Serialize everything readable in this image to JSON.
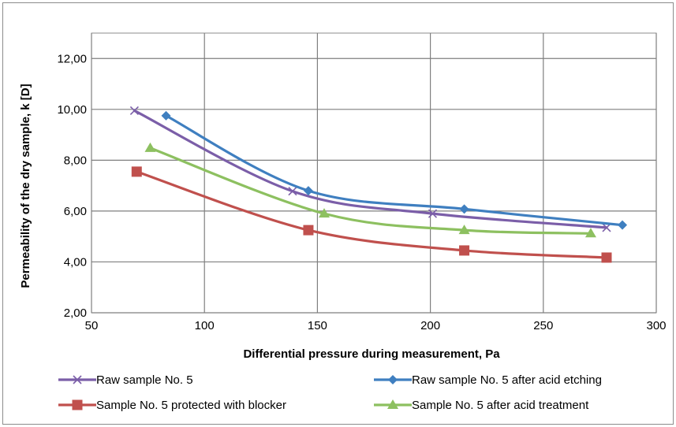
{
  "chart_data": {
    "type": "line",
    "xlabel": "Differential pressure during measurement, Pa",
    "ylabel": "Permeability of the dry sample, k [D]",
    "xlim": [
      50,
      300
    ],
    "ylim": [
      2,
      13
    ],
    "xticks": [
      50,
      100,
      150,
      200,
      250,
      300
    ],
    "xtick_labels": [
      "50",
      "100",
      "150",
      "200",
      "250",
      "300"
    ],
    "yticks": [
      2,
      4,
      6,
      8,
      10,
      12
    ],
    "ytick_labels": [
      "2,00",
      "4,00",
      "6,00",
      "8,00",
      "10,00",
      "12,00"
    ],
    "grid": true,
    "legend_position": "bottom",
    "series": [
      {
        "name": "Raw sample No. 5",
        "color": "#7b5ea8",
        "marker": "x",
        "x": [
          69,
          139,
          201,
          278
        ],
        "y": [
          9.95,
          6.78,
          5.9,
          5.35
        ]
      },
      {
        "name": "Raw sample No. 5 after acid etching",
        "color": "#3f7fc0",
        "marker": "diamond",
        "x": [
          83,
          146,
          215,
          285
        ],
        "y": [
          9.75,
          6.8,
          6.08,
          5.45
        ]
      },
      {
        "name": "Sample No. 5 protected with blocker",
        "color": "#c0504d",
        "marker": "square",
        "x": [
          70,
          146,
          215,
          278
        ],
        "y": [
          7.55,
          5.25,
          4.45,
          4.17
        ]
      },
      {
        "name": "Sample No. 5 after acid treatment",
        "color": "#8dc060",
        "marker": "triangle",
        "x": [
          76,
          153,
          215,
          271
        ],
        "y": [
          8.48,
          5.9,
          5.25,
          5.12
        ]
      }
    ]
  }
}
